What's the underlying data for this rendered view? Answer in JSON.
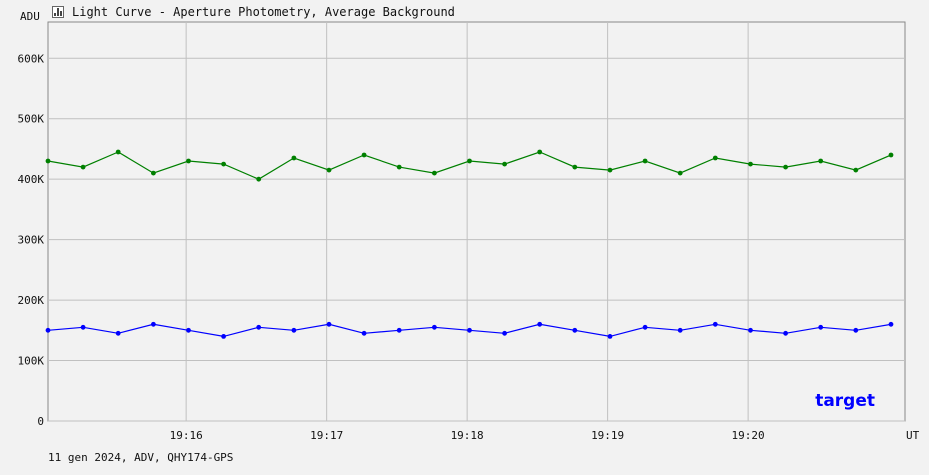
{
  "window": {
    "title": "Light Curve - Aperture Photometry, Average Background",
    "icon": "chart-icon"
  },
  "footer": "11 gen 2024, ADV, QHY174-GPS",
  "colors": {
    "green": "#008000",
    "blue": "#0000ff",
    "grid": "#c0c0c0",
    "background": "#f2f2f2"
  },
  "chart_data": {
    "type": "line",
    "title": "Light Curve - Aperture Photometry, Average Background",
    "xlabel": "UT",
    "ylabel": "ADU",
    "x_ticks": [
      "19:16",
      "19:17",
      "19:18",
      "19:19",
      "19:20"
    ],
    "xlim": [
      "19:15:01",
      "19:21:07"
    ],
    "y_ticks": [
      "0",
      "100K",
      "200K",
      "300K",
      "400K",
      "500K",
      "600K"
    ],
    "ylim": [
      0,
      660000
    ],
    "grid": true,
    "markers": true,
    "annotations": [
      {
        "text": "target",
        "position": "bottom-right"
      }
    ],
    "series": [
      {
        "color": "#008000",
        "description": "upper series, noisy around 425K",
        "x": [
          "19:15:01",
          "19:15:16",
          "19:15:31",
          "19:15:46",
          "19:16:01",
          "19:16:16",
          "19:16:31",
          "19:16:46",
          "19:17:01",
          "19:17:16",
          "19:17:31",
          "19:17:46",
          "19:18:01",
          "19:18:16",
          "19:18:31",
          "19:18:46",
          "19:19:01",
          "19:19:16",
          "19:19:31",
          "19:19:46",
          "19:20:01",
          "19:20:16",
          "19:20:31",
          "19:20:46",
          "19:21:01"
        ],
        "values": [
          430000,
          420000,
          445000,
          410000,
          430000,
          425000,
          400000,
          435000,
          415000,
          440000,
          420000,
          410000,
          430000,
          425000,
          445000,
          420000,
          415000,
          430000,
          410000,
          435000,
          425000,
          420000,
          430000,
          415000,
          440000
        ]
      },
      {
        "color": "#0000ff",
        "name": "target",
        "description": "lower series, noisy around 150K",
        "x": [
          "19:15:01",
          "19:15:16",
          "19:15:31",
          "19:15:46",
          "19:16:01",
          "19:16:16",
          "19:16:31",
          "19:16:46",
          "19:17:01",
          "19:17:16",
          "19:17:31",
          "19:17:46",
          "19:18:01",
          "19:18:16",
          "19:18:31",
          "19:18:46",
          "19:19:01",
          "19:19:16",
          "19:19:31",
          "19:19:46",
          "19:20:01",
          "19:20:16",
          "19:20:31",
          "19:20:46",
          "19:21:01"
        ],
        "values": [
          150000,
          155000,
          145000,
          160000,
          150000,
          140000,
          155000,
          150000,
          160000,
          145000,
          150000,
          155000,
          150000,
          145000,
          160000,
          150000,
          140000,
          155000,
          150000,
          160000,
          150000,
          145000,
          155000,
          150000,
          160000
        ]
      }
    ]
  }
}
